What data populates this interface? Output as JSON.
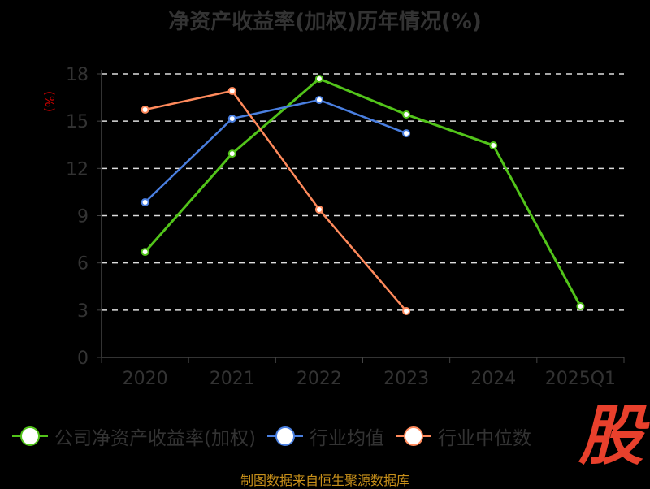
{
  "chart_data": {
    "type": "line",
    "title": "净资产收益率(加权)历年情况(%)",
    "ylabel": "(%)",
    "xlabel": "",
    "categories": [
      "2020",
      "2021",
      "2022",
      "2023",
      "2024",
      "2025Q1"
    ],
    "ylim": [
      0,
      18
    ],
    "yticks": [
      0,
      3,
      6,
      9,
      12,
      15,
      18
    ],
    "grid": true,
    "legend_position": "bottom",
    "series": [
      {
        "name": "公司净资产收益率(加权)",
        "color": "#52c41a",
        "values": [
          6.7,
          12.94,
          17.69,
          15.42,
          13.46,
          3.25
        ]
      },
      {
        "name": "行业均值",
        "color": "#4a7fe0",
        "values": [
          9.85,
          15.16,
          16.35,
          14.23,
          null,
          null
        ]
      },
      {
        "name": "行业中位数",
        "color": "#ff8a5c",
        "values": [
          15.73,
          16.92,
          9.39,
          2.94,
          null,
          null
        ]
      }
    ]
  },
  "source": "制图数据来自恒生聚源数据库",
  "logo_text": "股"
}
